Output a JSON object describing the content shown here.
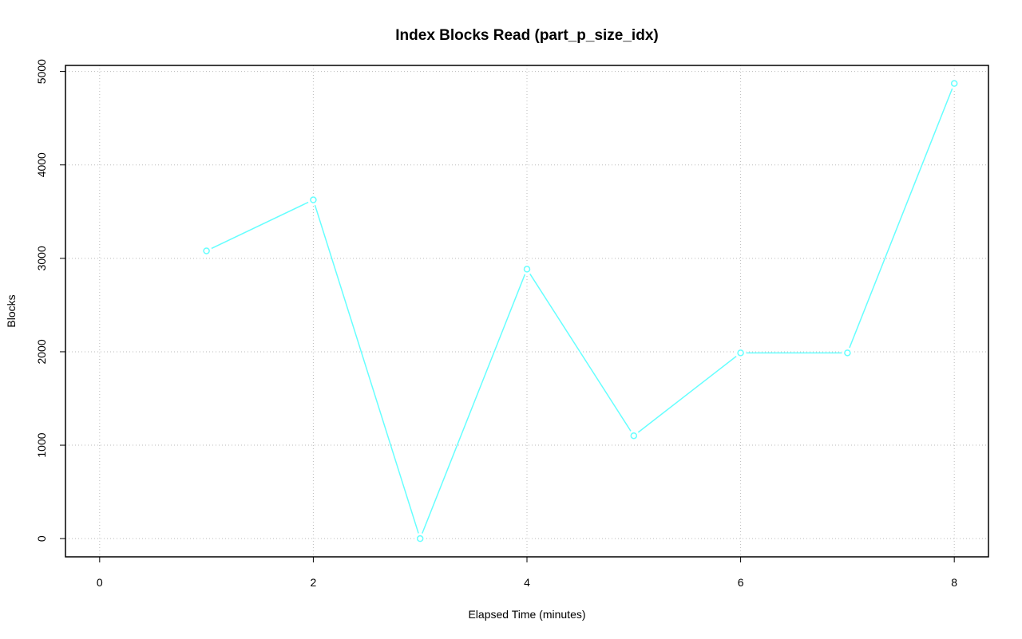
{
  "chart_data": {
    "type": "line",
    "title": "Index Blocks Read (part_p_size_idx)",
    "x_label": "Elapsed Time (minutes)",
    "y_label": "Blocks",
    "x": [
      1,
      2,
      3,
      4,
      5,
      6,
      7,
      8
    ],
    "series": [
      {
        "name": "Blocks",
        "color": "#66ffff",
        "values": [
          3080,
          3626,
          0,
          2884,
          1101,
          1988,
          1988,
          4872
        ]
      }
    ],
    "xlim": [
      -0.32,
      8.32
    ],
    "xticks": [
      0,
      2,
      4,
      6,
      8
    ],
    "ylim": [
      -195,
      5065
    ],
    "yticks": [
      0,
      1000,
      2000,
      3000,
      4000,
      5000
    ],
    "grid": true
  }
}
